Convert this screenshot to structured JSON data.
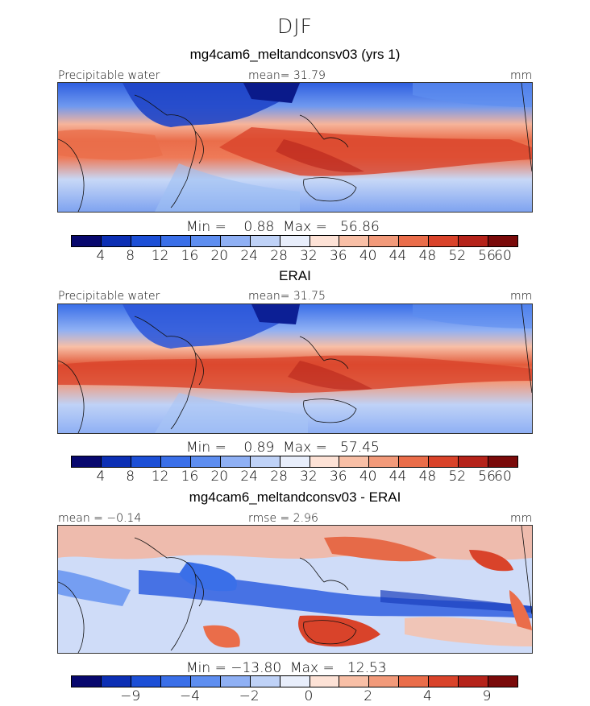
{
  "figure": {
    "season": "DJF"
  },
  "panels": [
    {
      "title": "mg4cam6_meltandconsv03 (yrs 1)",
      "left_label": "Precipitable water",
      "center_label": "mean=  31.79",
      "right_label": "mm",
      "stats": "Min =    0.88  Max =   56.86",
      "colorbar_ticks": [
        "4",
        "8",
        "12",
        "16",
        "20",
        "24",
        "28",
        "32",
        "36",
        "40",
        "44",
        "48",
        "52",
        "56",
        "60"
      ]
    },
    {
      "title": "ERAI",
      "left_label": "Precipitable water",
      "center_label": "mean=  31.75",
      "right_label": "mm",
      "stats": "Min =    0.89  Max =   57.45",
      "colorbar_ticks": [
        "4",
        "8",
        "12",
        "16",
        "20",
        "24",
        "28",
        "32",
        "36",
        "40",
        "44",
        "48",
        "52",
        "56",
        "60"
      ]
    },
    {
      "title": "mg4cam6_meltandconsv03 - ERAI",
      "left_label": "mean =  −0.14",
      "center_label": "rmse =    2.96",
      "right_label": "mm",
      "stats": "Min = −13.80  Max =   12.53",
      "colorbar_ticks": [
        "−9",
        "−4",
        "−2",
        "0",
        "2",
        "4",
        "9"
      ]
    }
  ],
  "colorbar_colors": [
    "#08086e",
    "#0c2fb4",
    "#1c4fd6",
    "#3a6fe8",
    "#5e8ef0",
    "#8fb0f4",
    "#bfd2f7",
    "#e8eefb",
    "#fde2d6",
    "#f8bfa6",
    "#f29a7a",
    "#ea6d4a",
    "#d9432a",
    "#b5231a",
    "#7a0a0a"
  ]
}
